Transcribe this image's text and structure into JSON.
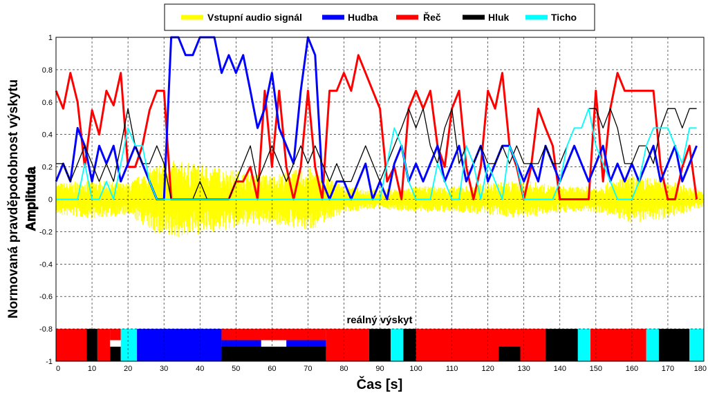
{
  "chart_data": {
    "type": "line",
    "xlabel": "Čas [s]",
    "ylabel": "Normovaná pravděpodobnost výskytu",
    "ylabel2": "Amplituda",
    "xlim": [
      0,
      180
    ],
    "ylim": [
      -1,
      1
    ],
    "x_ticks": [
      "0",
      "10",
      "20",
      "30",
      "40",
      "50",
      "60",
      "70",
      "80",
      "90",
      "100",
      "110",
      "120",
      "130",
      "140",
      "150",
      "160",
      "170",
      "180"
    ],
    "y_ticks": [
      "1",
      "0.8",
      "0.6",
      "0.4",
      "0.2",
      "0",
      "-0.2",
      "-0.4",
      "-0.6",
      "-0.8",
      "-1"
    ],
    "grid": "on (dashed)",
    "legend_position": "top",
    "colors": {
      "signal": "#ffff00",
      "hudba": "#0000ff",
      "rec": "#ff0000",
      "hluk": "#000000",
      "ticho": "#00ffff"
    },
    "legend": [
      {
        "key": "signal",
        "label": "Vstupní audio signál"
      },
      {
        "key": "hudba",
        "label": "Hudba"
      },
      {
        "key": "rec",
        "label": "Řeč"
      },
      {
        "key": "hluk",
        "label": "Hluk"
      },
      {
        "key": "ticho",
        "label": "Ticho"
      }
    ],
    "series": [
      {
        "key": "rec",
        "x": [
          0,
          2,
          4,
          6,
          8,
          10,
          12,
          14,
          16,
          18,
          20,
          22,
          24,
          26,
          28,
          30,
          32,
          34,
          36,
          38,
          40,
          42,
          44,
          46,
          48,
          50,
          52,
          54,
          56,
          58,
          60,
          62,
          64,
          66,
          68,
          70,
          72,
          74,
          76,
          78,
          80,
          82,
          84,
          86,
          88,
          90,
          92,
          94,
          96,
          98,
          100,
          102,
          104,
          106,
          108,
          110,
          112,
          114,
          116,
          118,
          120,
          122,
          124,
          126,
          128,
          130,
          132,
          134,
          136,
          138,
          140,
          142,
          144,
          146,
          148,
          150,
          152,
          154,
          156,
          158,
          160,
          162,
          164,
          166,
          168,
          170,
          172,
          174,
          176,
          178
        ],
        "values": [
          0.67,
          0.56,
          0.78,
          0.6,
          0.2,
          0.55,
          0.4,
          0.67,
          0.58,
          0.78,
          0.2,
          0.2,
          0.33,
          0.55,
          0.67,
          0.67,
          0,
          0,
          0,
          0,
          0,
          0,
          0,
          0,
          0,
          0.11,
          0.11,
          0.2,
          0,
          0.67,
          0.2,
          0.67,
          0.2,
          0,
          0.2,
          0.67,
          0.2,
          0,
          0.67,
          0.67,
          0.78,
          0.67,
          0.89,
          0.78,
          0.67,
          0.56,
          0.11,
          0.2,
          0,
          0.56,
          0.67,
          0.56,
          0.67,
          0.33,
          0.2,
          0.56,
          0.67,
          0.2,
          0,
          0.2,
          0.67,
          0.56,
          0.78,
          0.33,
          0.2,
          0,
          0.2,
          0.56,
          0.44,
          0.33,
          0,
          0,
          0,
          0,
          0,
          0.67,
          0.11,
          0.56,
          0.78,
          0.67,
          0.67,
          0.67,
          0.67,
          0.67,
          0.2,
          0,
          0,
          0.2,
          0.33,
          0
        ]
      },
      {
        "key": "hudba",
        "x": [
          0,
          2,
          4,
          6,
          8,
          10,
          12,
          14,
          16,
          18,
          20,
          22,
          24,
          26,
          28,
          30,
          32,
          34,
          36,
          38,
          40,
          42,
          44,
          46,
          48,
          50,
          52,
          54,
          56,
          58,
          60,
          62,
          64,
          66,
          68,
          70,
          72,
          74,
          76,
          78,
          80,
          82,
          84,
          86,
          88,
          90,
          92,
          94,
          96,
          98,
          100,
          102,
          104,
          106,
          108,
          110,
          112,
          114,
          116,
          118,
          120,
          122,
          124,
          126,
          128,
          130,
          132,
          134,
          136,
          138,
          140,
          142,
          144,
          146,
          148,
          150,
          152,
          154,
          156,
          158,
          160,
          162,
          164,
          166,
          168,
          170,
          172,
          174,
          176,
          178
        ],
        "values": [
          0.11,
          0.22,
          0.11,
          0.44,
          0.33,
          0.11,
          0.33,
          0.22,
          0.33,
          0.11,
          0.22,
          0.33,
          0.22,
          0.11,
          0,
          0,
          1,
          1,
          0.89,
          0.89,
          1,
          1,
          1,
          0.78,
          0.89,
          0.78,
          0.89,
          0.67,
          0.44,
          0.56,
          0.78,
          0.44,
          0.33,
          0.22,
          0.67,
          1,
          0.89,
          0.11,
          0,
          0.11,
          0.11,
          0,
          0.11,
          0.22,
          0,
          0.11,
          0,
          0.22,
          0.33,
          0.11,
          0.22,
          0.11,
          0.22,
          0.33,
          0.11,
          0.22,
          0.33,
          0.11,
          0.22,
          0.33,
          0.11,
          0.22,
          0.33,
          0.33,
          0.22,
          0.11,
          0.22,
          0.11,
          0.33,
          0.22,
          0.11,
          0.22,
          0.33,
          0.22,
          0.11,
          0.22,
          0.33,
          0.11,
          0.22,
          0.11,
          0.22,
          0.11,
          0.22,
          0.33,
          0.11,
          0.22,
          0.33,
          0.11,
          0.22,
          0.33
        ]
      },
      {
        "key": "hluk",
        "x": [
          0,
          2,
          4,
          6,
          8,
          10,
          12,
          14,
          16,
          18,
          20,
          22,
          24,
          26,
          28,
          30,
          32,
          34,
          36,
          38,
          40,
          42,
          44,
          46,
          48,
          50,
          52,
          54,
          56,
          58,
          60,
          62,
          64,
          66,
          68,
          70,
          72,
          74,
          76,
          78,
          80,
          82,
          84,
          86,
          88,
          90,
          92,
          94,
          96,
          98,
          100,
          102,
          104,
          106,
          108,
          110,
          112,
          114,
          116,
          118,
          120,
          122,
          124,
          126,
          128,
          130,
          132,
          134,
          136,
          138,
          140,
          142,
          144,
          146,
          148,
          150,
          152,
          154,
          156,
          158,
          160,
          162,
          164,
          166,
          168,
          170,
          172,
          174,
          176,
          178
        ],
        "values": [
          0.22,
          0.22,
          0.11,
          0.22,
          0.33,
          0.22,
          0.11,
          0.22,
          0.11,
          0.33,
          0.56,
          0.33,
          0.22,
          0.22,
          0.33,
          0.22,
          0,
          0,
          0,
          0,
          0.11,
          0,
          0,
          0,
          0,
          0.11,
          0.22,
          0.33,
          0.11,
          0.22,
          0.33,
          0.22,
          0.11,
          0.22,
          0.33,
          0.22,
          0.33,
          0.22,
          0.11,
          0.22,
          0.11,
          0.11,
          0.22,
          0.33,
          0.22,
          0.11,
          0.22,
          0.33,
          0.44,
          0.56,
          0.44,
          0.56,
          0.33,
          0.22,
          0.44,
          0.56,
          0.22,
          0.33,
          0.22,
          0.33,
          0.22,
          0.22,
          0.33,
          0.22,
          0.33,
          0.22,
          0.22,
          0.22,
          0.33,
          0.22,
          0.22,
          0.33,
          0.44,
          0.44,
          0.56,
          0.56,
          0.44,
          0.56,
          0.44,
          0.22,
          0.22,
          0.33,
          0.33,
          0.22,
          0.44,
          0.56,
          0.56,
          0.44,
          0.56,
          0.56
        ]
      },
      {
        "key": "ticho",
        "x": [
          0,
          2,
          4,
          6,
          8,
          10,
          12,
          14,
          16,
          18,
          20,
          22,
          24,
          26,
          28,
          30,
          32,
          34,
          36,
          38,
          40,
          42,
          44,
          46,
          48,
          50,
          52,
          54,
          56,
          58,
          60,
          62,
          64,
          66,
          68,
          70,
          72,
          74,
          76,
          78,
          80,
          82,
          84,
          86,
          88,
          90,
          92,
          94,
          96,
          98,
          100,
          102,
          104,
          106,
          108,
          110,
          112,
          114,
          116,
          118,
          120,
          122,
          124,
          126,
          128,
          130,
          132,
          134,
          136,
          138,
          140,
          142,
          144,
          146,
          148,
          150,
          152,
          154,
          156,
          158,
          160,
          162,
          164,
          166,
          168,
          170,
          172,
          174,
          176,
          178
        ],
        "values": [
          0,
          0,
          0,
          0,
          0.22,
          0,
          0,
          0.11,
          0,
          0.22,
          0.44,
          0.33,
          0.33,
          0.11,
          0,
          0,
          0,
          0,
          0,
          0,
          0,
          0,
          0,
          0,
          0,
          0,
          0,
          0,
          0,
          0,
          0,
          0,
          0,
          0,
          0,
          0,
          0,
          0,
          0,
          0,
          0,
          0,
          0,
          0,
          0,
          0,
          0.22,
          0.44,
          0.33,
          0.11,
          0,
          0,
          0,
          0.22,
          0.11,
          0,
          0,
          0.33,
          0.22,
          0,
          0.22,
          0.11,
          0,
          0.33,
          0.22,
          0,
          0,
          0,
          0,
          0,
          0.11,
          0.33,
          0.44,
          0.44,
          0.56,
          0.33,
          0.22,
          0.11,
          0,
          0,
          0,
          0.11,
          0.33,
          0.44,
          0.44,
          0.44,
          0.33,
          0.22,
          0.44,
          0.44
        ]
      }
    ],
    "signal": {
      "description_free": true,
      "envelope": [
        [
          0,
          0.1
        ],
        [
          10,
          0.12
        ],
        [
          20,
          0.1
        ],
        [
          30,
          0.25
        ],
        [
          45,
          0.2
        ],
        [
          50,
          0.18
        ],
        [
          60,
          0.15
        ],
        [
          70,
          0.2
        ],
        [
          80,
          0.08
        ],
        [
          90,
          0.06
        ],
        [
          100,
          0.08
        ],
        [
          110,
          0.08
        ],
        [
          120,
          0.1
        ],
        [
          130,
          0.12
        ],
        [
          140,
          0.08
        ],
        [
          150,
          0.08
        ],
        [
          160,
          0.15
        ],
        [
          170,
          0.12
        ],
        [
          180,
          0.05
        ]
      ]
    },
    "band": {
      "title": "reálný výskyt",
      "ylim": [
        -1,
        -0.8
      ],
      "segments": [
        {
          "start": 0,
          "end": 8.5,
          "key": "rec",
          "part": "full"
        },
        {
          "start": 8.5,
          "end": 11.5,
          "key": "hluk",
          "part": "full"
        },
        {
          "start": 11.5,
          "end": 15,
          "key": "rec",
          "part": "full"
        },
        {
          "start": 15,
          "end": 18,
          "key": "hluk",
          "part": "bottom"
        },
        {
          "start": 15,
          "end": 18,
          "key": "rec",
          "part": "top"
        },
        {
          "start": 18,
          "end": 22.5,
          "key": "ticho",
          "part": "full"
        },
        {
          "start": 22.5,
          "end": 46,
          "key": "hudba",
          "part": "full"
        },
        {
          "start": 46,
          "end": 75,
          "key": "rec",
          "part": "top"
        },
        {
          "start": 46,
          "end": 57,
          "key": "hudba",
          "part": "mid"
        },
        {
          "start": 64,
          "end": 75,
          "key": "hudba",
          "part": "mid"
        },
        {
          "start": 46,
          "end": 75,
          "key": "hluk",
          "part": "bottom"
        },
        {
          "start": 75,
          "end": 87,
          "key": "rec",
          "part": "full"
        },
        {
          "start": 87,
          "end": 93,
          "key": "hluk",
          "part": "full"
        },
        {
          "start": 93,
          "end": 96.5,
          "key": "ticho",
          "part": "full"
        },
        {
          "start": 96.5,
          "end": 100,
          "key": "hluk",
          "part": "full"
        },
        {
          "start": 100,
          "end": 136,
          "key": "rec",
          "part": "full"
        },
        {
          "start": 123,
          "end": 129,
          "key": "hluk",
          "part": "bottom"
        },
        {
          "start": 136,
          "end": 145,
          "key": "hluk",
          "part": "full"
        },
        {
          "start": 145,
          "end": 148.5,
          "key": "ticho",
          "part": "full"
        },
        {
          "start": 148.5,
          "end": 164,
          "key": "rec",
          "part": "full"
        },
        {
          "start": 164,
          "end": 167.5,
          "key": "ticho",
          "part": "full"
        },
        {
          "start": 167.5,
          "end": 176,
          "key": "hluk",
          "part": "full"
        },
        {
          "start": 176,
          "end": 180,
          "key": "ticho",
          "part": "full"
        }
      ]
    }
  }
}
